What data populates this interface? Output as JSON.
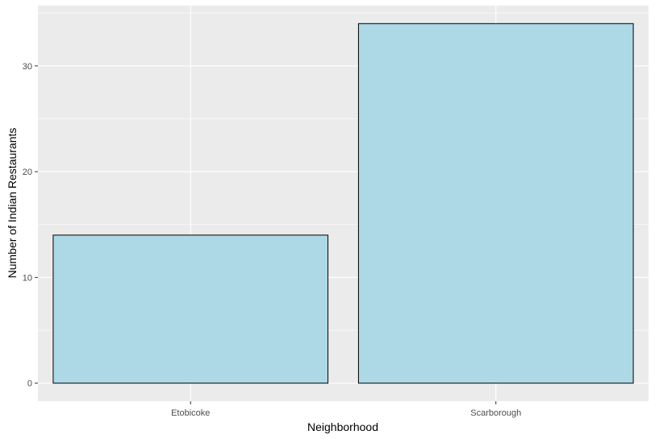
{
  "chart_data": {
    "type": "bar",
    "categories": [
      "Etobicoke",
      "Scarborough"
    ],
    "values": [
      14,
      34
    ],
    "xlabel": "Neighborhood",
    "ylabel": "Number of Indian Restaurants",
    "ylim": [
      -1.7,
      35.7
    ],
    "yticks": [
      0,
      10,
      20,
      30
    ],
    "ytick_labels": [
      "0",
      "10",
      "20",
      "30"
    ],
    "grid": true,
    "colors": {
      "bar_fill": "#add8e6",
      "bar_stroke": "#000000",
      "panel_bg": "#ebebeb",
      "grid": "#ffffff"
    }
  }
}
